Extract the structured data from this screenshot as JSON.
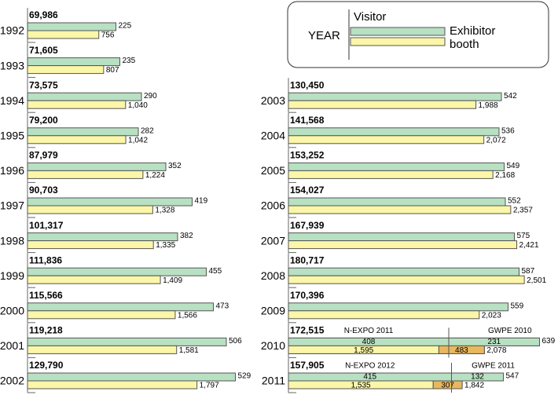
{
  "chart_data": {
    "type": "bar",
    "categories": [
      "1992",
      "1993",
      "1994",
      "1995",
      "1996",
      "1997",
      "1998",
      "1999",
      "2000",
      "2001",
      "2002",
      "2003",
      "2004",
      "2005",
      "2006",
      "2007",
      "2008",
      "2009",
      "2010",
      "2011"
    ],
    "legend_title": "YEAR",
    "series": [
      {
        "name": "Visitor",
        "values": [
          69986,
          71605,
          73575,
          79200,
          87979,
          90703,
          101317,
          111836,
          115566,
          119218,
          129790,
          130450,
          141568,
          153252,
          154027,
          167939,
          180717,
          170396,
          172515,
          157905
        ],
        "value_labels": [
          "69,986",
          "71,605",
          "73,575",
          "79,200",
          "87,979",
          "90,703",
          "101,317",
          "111,836",
          "115,566",
          "119,218",
          "129,790",
          "130,450",
          "141,568",
          "153,252",
          "154,027",
          "167,939",
          "180,717",
          "170,396",
          "172,515",
          "157,905"
        ]
      },
      {
        "name": "Exhibitor",
        "color": "#b8e0c2",
        "values": [
          225,
          235,
          290,
          282,
          352,
          419,
          382,
          455,
          473,
          506,
          529,
          542,
          536,
          549,
          552,
          575,
          587,
          559,
          639,
          547
        ]
      },
      {
        "name": "booth",
        "color": "#fbf6a8",
        "values": [
          756,
          807,
          1040,
          1042,
          1224,
          1328,
          1335,
          1409,
          1566,
          1581,
          1797,
          1988,
          2072,
          2168,
          2357,
          2421,
          2501,
          2023,
          2078,
          1842
        ],
        "value_labels": [
          "756",
          "807",
          "1,040",
          "1,042",
          "1,224",
          "1,328",
          "1,335",
          "1,409",
          "1,566",
          "1,581",
          "1,797",
          "1,988",
          "2,072",
          "2,168",
          "2,357",
          "2,421",
          "2,501",
          "2,023",
          "2,078",
          "1,842"
        ]
      }
    ],
    "breakdown_color": "#e8b85e",
    "breakdowns": [
      null,
      null,
      null,
      null,
      null,
      null,
      null,
      null,
      null,
      null,
      null,
      null,
      null,
      null,
      null,
      null,
      null,
      null,
      [
        {
          "name": "N-EXPO 2011",
          "exhibitor": 408,
          "booth": 1595,
          "booth_label": "1,595"
        },
        {
          "name": "GWPE 2010",
          "exhibitor": 231,
          "booth": 483
        }
      ],
      [
        {
          "name": "N-EXPO 2012",
          "exhibitor": 415,
          "booth": 1535,
          "booth_label": "1,535"
        },
        {
          "name": "GWPE 2011",
          "exhibitor": 132,
          "booth": 307
        }
      ]
    ]
  }
}
